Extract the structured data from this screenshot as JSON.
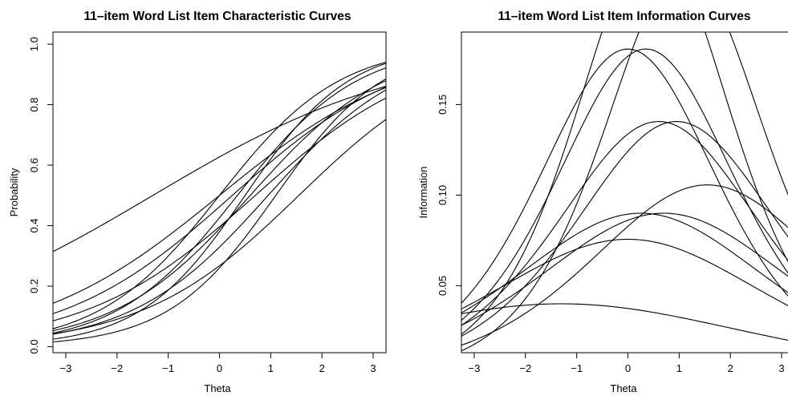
{
  "chart_data": [
    {
      "type": "line",
      "title": "11–item Word List Item Characteristic Curves",
      "xlabel": "Theta",
      "ylabel": "Probability",
      "xlim": [
        -3.25,
        3.25
      ],
      "ylim": [
        -0.02,
        1.04
      ],
      "xticks": [
        -3,
        -2,
        -1,
        0,
        1,
        2,
        3
      ],
      "xtick_labels": [
        "−3",
        "−2",
        "−1",
        "0",
        "1",
        "2",
        "3"
      ],
      "yticks": [
        0.0,
        0.2,
        0.4,
        0.6,
        0.8,
        1.0
      ],
      "ytick_labels": [
        "0.0",
        "0.2",
        "0.4",
        "0.6",
        "0.8",
        "1.0"
      ],
      "grid": false,
      "model": "2PL logistic",
      "items": [
        {
          "a": 0.4,
          "b": -1.3
        },
        {
          "a": 0.85,
          "b": 0.0
        },
        {
          "a": 0.98,
          "b": 0.5
        },
        {
          "a": 0.95,
          "b": 1.1
        },
        {
          "a": 0.75,
          "b": 0.6
        },
        {
          "a": 0.85,
          "b": 0.35
        },
        {
          "a": 0.6,
          "b": 0.25
        },
        {
          "a": 0.65,
          "b": 1.55
        },
        {
          "a": 0.6,
          "b": 0.7
        },
        {
          "a": 0.55,
          "b": 0.0
        },
        {
          "a": 0.75,
          "b": 0.95
        }
      ]
    },
    {
      "type": "line",
      "title": "11–item Word List Item Information Curves",
      "xlabel": "Theta",
      "ylabel": "Information",
      "xlim": [
        -3.25,
        3.25
      ],
      "ylim": [
        0.013,
        0.19
      ],
      "xticks": [
        -3,
        -2,
        -1,
        0,
        1,
        2,
        3
      ],
      "xtick_labels": [
        "−3",
        "−2",
        "−1",
        "0",
        "1",
        "2",
        "3"
      ],
      "yticks": [
        0.05,
        0.1,
        0.15
      ],
      "ytick_labels": [
        "0.05",
        "0.10",
        "0.15"
      ],
      "grid": false,
      "model": "2PL information a^2 P (1-P)",
      "items_ref": 0
    }
  ]
}
